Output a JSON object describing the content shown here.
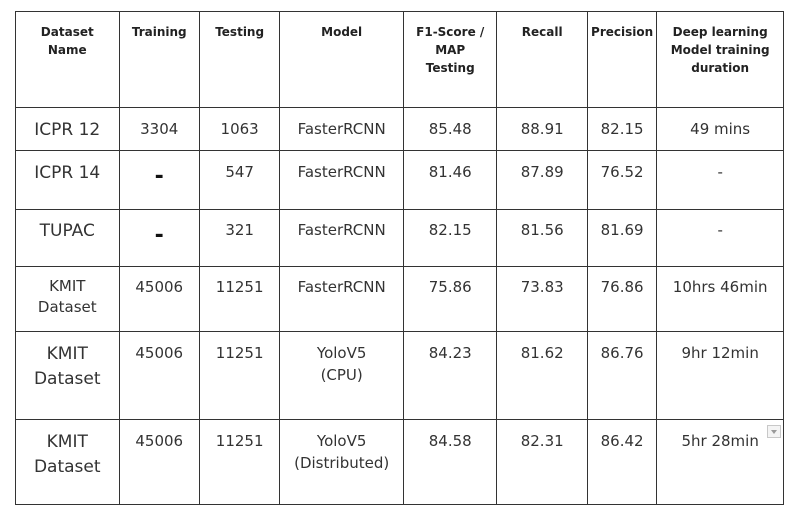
{
  "headers": {
    "dataset_name": "Dataset Name",
    "training": "Training",
    "testing": "Testing",
    "model": "Model",
    "f1_map": "F1-Score / MAP Testing",
    "recall": "Recall",
    "precision": "Precision",
    "duration": "Deep learning Model training duration"
  },
  "rows": [
    {
      "dataset": "ICPR 12",
      "training": "3304",
      "testing": "1063",
      "model": "FasterRCNN",
      "f1": "85.48",
      "recall": "88.91",
      "precision": "82.15",
      "duration": "49 mins"
    },
    {
      "dataset": "ICPR 14",
      "training": "-",
      "testing": "547",
      "model": "FasterRCNN",
      "f1": "81.46",
      "recall": "87.89",
      "precision": "76.52",
      "duration": "-"
    },
    {
      "dataset": "TUPAC",
      "training": "-",
      "testing": "321",
      "model": "FasterRCNN",
      "f1": "82.15",
      "recall": "81.56",
      "precision": "81.69",
      "duration": "-"
    },
    {
      "dataset": "KMIT Dataset",
      "training": "45006",
      "testing": "11251",
      "model": "FasterRCNN",
      "f1": "75.86",
      "recall": "73.83",
      "precision": "76.86",
      "duration": "10hrs 46min"
    },
    {
      "dataset": "KMIT Dataset",
      "training": "45006",
      "testing": "11251",
      "model": "YoloV5 (CPU)",
      "f1": "84.23",
      "recall": "81.62",
      "precision": "86.76",
      "duration": "9hr 12min"
    },
    {
      "dataset": "KMIT Dataset",
      "training": "45006",
      "testing": "11251",
      "model": "YoloV5 (Distributed)",
      "f1": "84.58",
      "recall": "82.31",
      "precision": "86.42",
      "duration": "5hr 28min"
    }
  ]
}
